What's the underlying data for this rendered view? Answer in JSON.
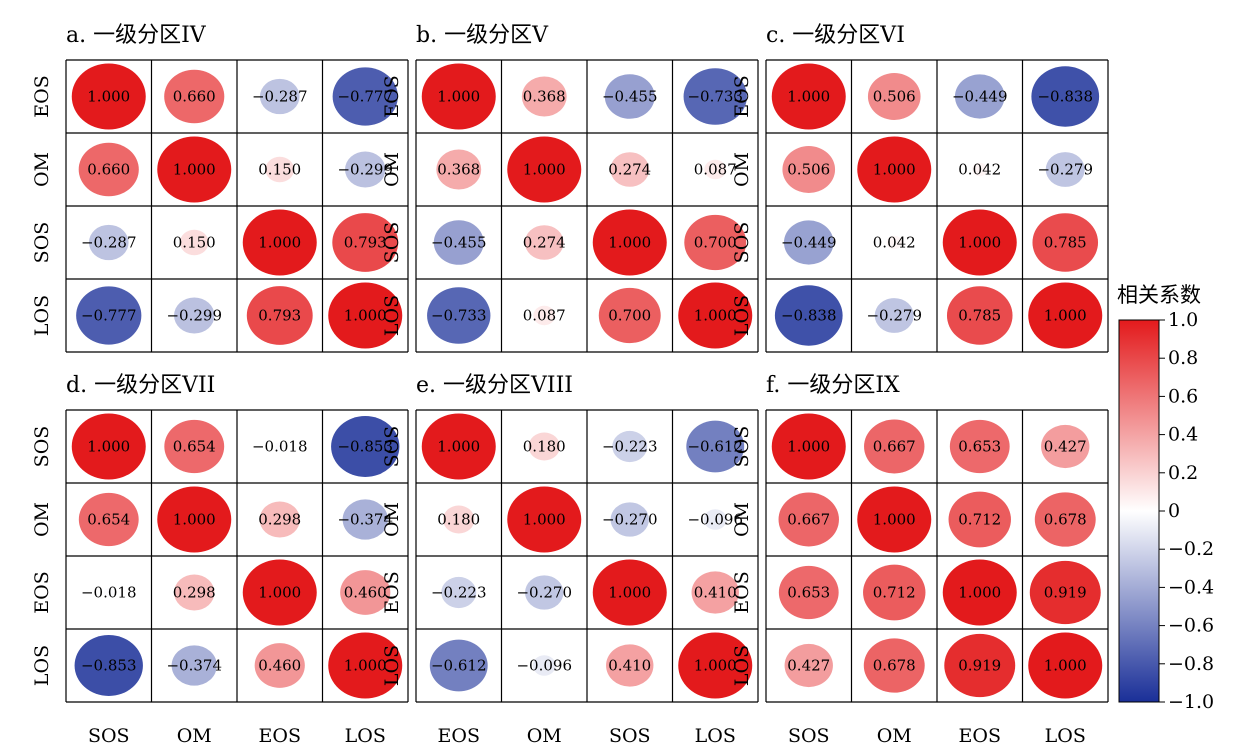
{
  "chart_data": {
    "type": "heatmap",
    "color_scale": {
      "title": "相关系数",
      "min": -1.0,
      "max": 1.0,
      "ticks": [
        "1.0",
        "0.8",
        "0.6",
        "0.4",
        "0.2",
        "0",
        "−0.2",
        "−0.4",
        "−0.6",
        "−0.8",
        "−1.0"
      ],
      "negative_color": "#1a2f98",
      "zero_color": "#ffffff",
      "positive_color": "#e31a1c"
    },
    "panels": [
      {
        "title": "a. 一级分区IV",
        "row_labels": [
          "EOS",
          "OM",
          "SOS",
          "LOS"
        ],
        "col_labels": [
          "SOS",
          "OM",
          "EOS",
          "LOS"
        ],
        "values": [
          [
            1.0,
            0.66,
            -0.287,
            -0.777
          ],
          [
            0.66,
            1.0,
            0.15,
            -0.299
          ],
          [
            -0.287,
            0.15,
            1.0,
            0.793
          ],
          [
            -0.777,
            -0.299,
            0.793,
            1.0
          ]
        ],
        "labels": [
          [
            "1.000",
            "0.660",
            "−0.287",
            "−0.777"
          ],
          [
            "0.660",
            "1.000",
            "0.150",
            "−0.299"
          ],
          [
            "−0.287",
            "0.150",
            "1.000",
            "0.793"
          ],
          [
            "−0.777",
            "−0.299",
            "0.793",
            "1.000"
          ]
        ]
      },
      {
        "title": "b. 一级分区V",
        "row_labels": [
          "EOS",
          "OM",
          "SOS",
          "LOS"
        ],
        "col_labels": [
          "EOS",
          "OM",
          "SOS",
          "LOS"
        ],
        "values": [
          [
            1.0,
            0.368,
            -0.455,
            -0.733
          ],
          [
            0.368,
            1.0,
            0.274,
            0.087
          ],
          [
            -0.455,
            0.274,
            1.0,
            0.7
          ],
          [
            -0.733,
            0.087,
            0.7,
            1.0
          ]
        ],
        "labels": [
          [
            "1.000",
            "0.368",
            "−0.455",
            "−0.733"
          ],
          [
            "0.368",
            "1.000",
            "0.274",
            "0.087"
          ],
          [
            "−0.455",
            "0.274",
            "1.000",
            "0.700"
          ],
          [
            "−0.733",
            "0.087",
            "0.700",
            "1.000"
          ]
        ]
      },
      {
        "title": "c. 一级分区VI",
        "row_labels": [
          "EOS",
          "OM",
          "SOS",
          "LOS"
        ],
        "col_labels": [
          "SOS",
          "OM",
          "EOS",
          "LOS"
        ],
        "values": [
          [
            1.0,
            0.506,
            -0.449,
            -0.838
          ],
          [
            0.506,
            1.0,
            0.042,
            -0.279
          ],
          [
            -0.449,
            0.042,
            1.0,
            0.785
          ],
          [
            -0.838,
            -0.279,
            0.785,
            1.0
          ]
        ],
        "labels": [
          [
            "1.000",
            "0.506",
            "−0.449",
            "−0.838"
          ],
          [
            "0.506",
            "1.000",
            "0.042",
            "−0.279"
          ],
          [
            "−0.449",
            "0.042",
            "1.000",
            "0.785"
          ],
          [
            "−0.838",
            "−0.279",
            "0.785",
            "1.000"
          ]
        ]
      },
      {
        "title": "d. 一级分区VII",
        "row_labels": [
          "SOS",
          "OM",
          "EOS",
          "LOS"
        ],
        "col_labels": [
          "SOS",
          "OM",
          "EOS",
          "LOS"
        ],
        "values": [
          [
            1.0,
            0.654,
            -0.018,
            -0.853
          ],
          [
            0.654,
            1.0,
            0.298,
            -0.374
          ],
          [
            -0.018,
            0.298,
            1.0,
            0.46
          ],
          [
            -0.853,
            -0.374,
            0.46,
            1.0
          ]
        ],
        "labels": [
          [
            "1.000",
            "0.654",
            "−0.018",
            "−0.853"
          ],
          [
            "0.654",
            "1.000",
            "0.298",
            "−0.374"
          ],
          [
            "−0.018",
            "0.298",
            "1.000",
            "0.460"
          ],
          [
            "−0.853",
            "−0.374",
            "0.460",
            "1.000"
          ]
        ]
      },
      {
        "title": "e. 一级分区VIII",
        "row_labels": [
          "SOS",
          "OM",
          "EOS",
          "LOS"
        ],
        "col_labels": [
          "EOS",
          "OM",
          "SOS",
          "LOS"
        ],
        "values": [
          [
            1.0,
            0.18,
            -0.223,
            -0.612
          ],
          [
            0.18,
            1.0,
            -0.27,
            -0.096
          ],
          [
            -0.223,
            -0.27,
            1.0,
            0.41
          ],
          [
            -0.612,
            -0.096,
            0.41,
            1.0
          ]
        ],
        "labels": [
          [
            "1.000",
            "0.180",
            "−0.223",
            "−0.612"
          ],
          [
            "0.180",
            "1.000",
            "−0.270",
            "−0.096"
          ],
          [
            "−0.223",
            "−0.270",
            "1.000",
            "0.410"
          ],
          [
            "−0.612",
            "−0.096",
            "0.410",
            "1.000"
          ]
        ]
      },
      {
        "title": "f. 一级分区IX",
        "row_labels": [
          "SOS",
          "OM",
          "EOS",
          "LOS"
        ],
        "col_labels": [
          "SOS",
          "OM",
          "EOS",
          "LOS"
        ],
        "values": [
          [
            1.0,
            0.667,
            0.653,
            0.427
          ],
          [
            0.667,
            1.0,
            0.712,
            0.678
          ],
          [
            0.653,
            0.712,
            1.0,
            0.919
          ],
          [
            0.427,
            0.678,
            0.919,
            1.0
          ]
        ],
        "labels": [
          [
            "1.000",
            "0.667",
            "0.653",
            "0.427"
          ],
          [
            "0.667",
            "1.000",
            "0.712",
            "0.678"
          ],
          [
            "0.653",
            "0.712",
            "1.000",
            "0.919"
          ],
          [
            "0.427",
            "0.678",
            "0.919",
            "1.000"
          ]
        ]
      }
    ]
  }
}
